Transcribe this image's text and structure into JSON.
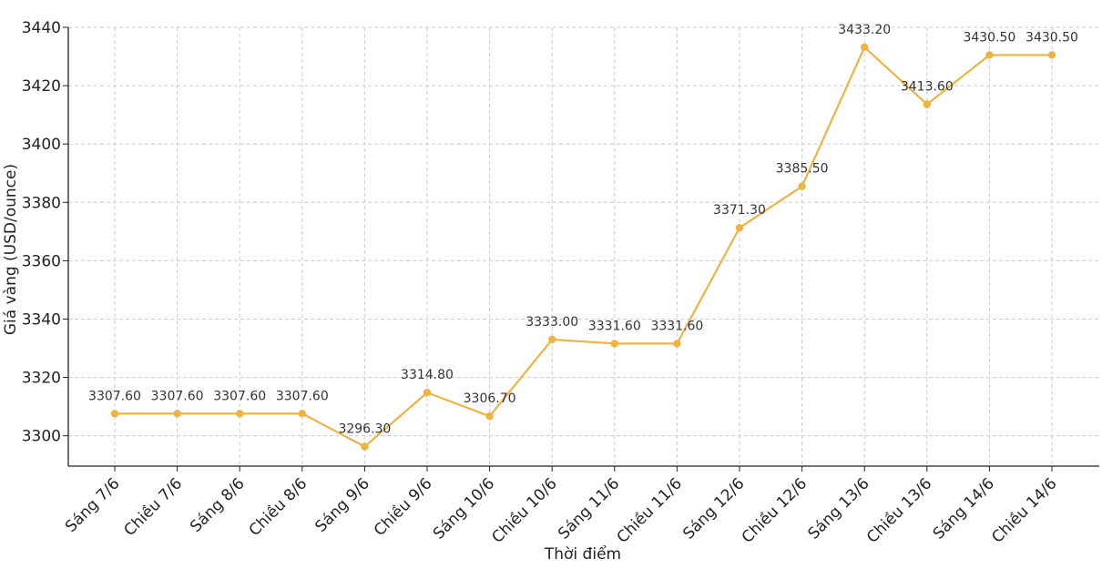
{
  "chart_data": {
    "type": "line",
    "title": "",
    "xlabel": "Thời điểm",
    "ylabel": "Giá vàng (USD/ounce)",
    "categories": [
      "Sáng 7/6",
      "Chiều 7/6",
      "Sáng 8/6",
      "Chiều 8/6",
      "Sáng 9/6",
      "Chiều 9/6",
      "Sáng 10/6",
      "Chiều 10/6",
      "Sáng 11/6",
      "Chiều 11/6",
      "Sáng 12/6",
      "Chiều 12/6",
      "Sáng 13/6",
      "Chiều 13/6",
      "Sáng 14/6",
      "Chiều 14/6"
    ],
    "values": [
      3307.6,
      3307.6,
      3307.6,
      3307.6,
      3296.3,
      3314.8,
      3306.7,
      3333.0,
      3331.6,
      3331.6,
      3371.3,
      3385.5,
      3433.2,
      3413.6,
      3430.5,
      3430.5
    ],
    "data_labels": [
      "3307.60",
      "3307.60",
      "3307.60",
      "3307.60",
      "3296.30",
      "3314.80",
      "3306.70",
      "3333.00",
      "3331.60",
      "3331.60",
      "3371.30",
      "3385.50",
      "3433.20",
      "3413.60",
      "3430.50",
      "3430.50"
    ],
    "yticks": [
      3300,
      3320,
      3340,
      3360,
      3380,
      3400,
      3420,
      3440
    ],
    "ylim": [
      3289.6,
      3440
    ],
    "grid": true,
    "line_color": "#EEB340"
  }
}
